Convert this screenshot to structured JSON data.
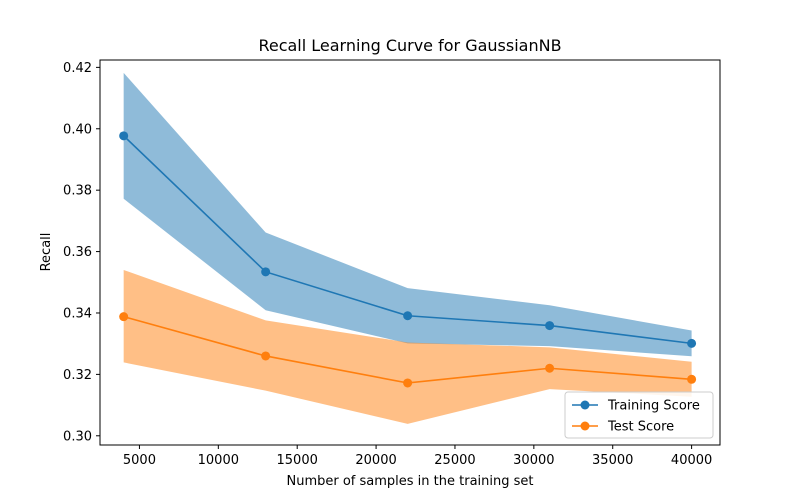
{
  "chart_data": {
    "type": "line",
    "title": "Recall Learning Curve for GaussianNB",
    "xlabel": "Number of samples in the training set",
    "ylabel": "Recall",
    "xlim": [
      2500,
      41800
    ],
    "ylim": [
      0.297,
      0.4224
    ],
    "x_ticks": [
      5000,
      10000,
      15000,
      20000,
      25000,
      30000,
      35000,
      40000
    ],
    "y_ticks": [
      0.3,
      0.32,
      0.34,
      0.36,
      0.38,
      0.4,
      0.42
    ],
    "y_tick_labels": [
      "0.30",
      "0.32",
      "0.34",
      "0.36",
      "0.38",
      "0.40",
      "0.42"
    ],
    "grid": false,
    "legend_position": "lower-right",
    "x": [
      4000,
      13000,
      22000,
      31000,
      40000
    ],
    "series": [
      {
        "name": "Training Score",
        "color": "#1f77b4",
        "band_color": "#1f77b4",
        "values": [
          0.3977,
          0.3534,
          0.3391,
          0.3359,
          0.3301
        ],
        "lower": [
          0.3772,
          0.3409,
          0.3301,
          0.3292,
          0.3259
        ],
        "upper": [
          0.4182,
          0.3662,
          0.3481,
          0.3425,
          0.3343
        ]
      },
      {
        "name": "Test Score",
        "color": "#ff7f0e",
        "band_color": "#ff7f0e",
        "values": [
          0.3388,
          0.326,
          0.3172,
          0.322,
          0.3184
        ],
        "lower": [
          0.3239,
          0.3147,
          0.3039,
          0.3152,
          0.3127
        ],
        "upper": [
          0.354,
          0.3376,
          0.3304,
          0.3288,
          0.3241
        ]
      }
    ]
  }
}
